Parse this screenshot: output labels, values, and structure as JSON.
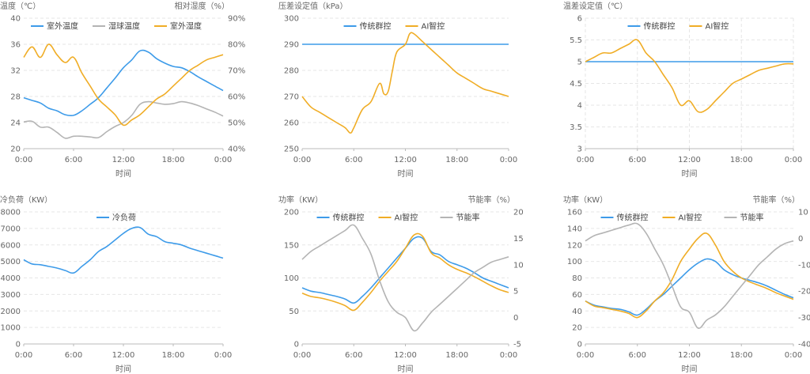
{
  "colors": {
    "blue": "#3d9be9",
    "gray": "#b4b4b4",
    "orange": "#f0ad26",
    "grid": "#e6e6e6",
    "axis": "#bbbbbb"
  },
  "chart_data": [
    {
      "type": "line",
      "ylabel_left": "温度（℃）",
      "ylabel_right": "相对湿度（%）",
      "xlabel": "时间",
      "x_ticks": [
        "0:00",
        "6:00",
        "12:00",
        "18:00",
        "0:00"
      ],
      "ylim_left": [
        20,
        40
      ],
      "yticks_left": [
        20,
        24,
        28,
        32,
        36,
        40
      ],
      "ylim_right": [
        40,
        90
      ],
      "yticks_right": [
        "40%",
        "50%",
        "60%",
        "70%",
        "80%",
        "90%"
      ],
      "right_ylim_values": [
        40,
        90
      ],
      "right_yticks_values": [
        40,
        50,
        60,
        70,
        80,
        90
      ],
      "x_range": [
        0,
        24
      ],
      "grid": "horizontal-dashed",
      "legend": "top",
      "series": [
        {
          "name": "室外温度",
          "axis": "left",
          "color": "#3d9be9",
          "x": [
            0,
            1,
            2,
            3,
            4,
            5,
            6,
            7,
            8,
            9,
            10,
            11,
            12,
            13,
            14,
            15,
            16,
            17,
            18,
            19,
            20,
            21,
            22,
            23,
            24
          ],
          "values": [
            27.8,
            27.4,
            27.0,
            26.2,
            25.8,
            25.2,
            25.1,
            25.8,
            26.8,
            27.8,
            29.3,
            30.8,
            32.4,
            33.6,
            35.0,
            34.8,
            33.8,
            33.1,
            32.6,
            32.4,
            31.8,
            31.0,
            30.3,
            29.6,
            28.9
          ]
        },
        {
          "name": "湿球温度",
          "axis": "left",
          "color": "#b4b4b4",
          "x": [
            0,
            1,
            2,
            3,
            4,
            5,
            6,
            7,
            8,
            9,
            10,
            11,
            12,
            13,
            14,
            15,
            16,
            17,
            18,
            19,
            20,
            21,
            22,
            23,
            24
          ],
          "values": [
            24.1,
            24.2,
            23.3,
            23.3,
            22.5,
            21.6,
            21.9,
            21.9,
            21.8,
            21.7,
            22.6,
            23.4,
            24.0,
            25.1,
            26.8,
            27.2,
            27.0,
            26.8,
            26.9,
            27.2,
            27.0,
            26.6,
            26.1,
            25.6,
            25.0
          ]
        },
        {
          "name": "室外湿度",
          "axis": "right",
          "color": "#f0ad26",
          "x": [
            0,
            1,
            2,
            3,
            4,
            5,
            6,
            7,
            8,
            9,
            10,
            11,
            12,
            13,
            14,
            15,
            16,
            17,
            18,
            19,
            20,
            21,
            22,
            23,
            24
          ],
          "values": [
            75,
            79,
            75,
            80,
            76,
            73,
            75,
            69,
            64,
            59,
            56,
            53,
            49,
            51,
            53,
            56,
            59,
            61,
            64,
            67,
            70,
            72,
            74,
            75,
            76
          ]
        }
      ]
    },
    {
      "type": "line",
      "ylabel_left": "压差设定值（kPa）",
      "xlabel": "时间",
      "x_ticks": [
        "0:00",
        "6:00",
        "12:00",
        "18:00",
        "0:00"
      ],
      "ylim_left": [
        250,
        300
      ],
      "yticks_left": [
        250,
        260,
        270,
        280,
        290,
        300
      ],
      "x_range": [
        0,
        24
      ],
      "grid": "horizontal-dashed",
      "legend": "top",
      "series": [
        {
          "name": "传统群控",
          "axis": "left",
          "color": "#3d9be9",
          "x": [
            0,
            24
          ],
          "values": [
            290,
            290
          ]
        },
        {
          "name": "AI智控",
          "axis": "left",
          "color": "#f0ad26",
          "x": [
            0,
            1,
            2,
            3,
            4,
            5,
            5.6,
            6,
            7,
            8,
            9,
            9.5,
            10,
            10.5,
            11,
            12,
            12.5,
            13,
            14,
            15,
            16,
            17,
            18,
            19,
            20,
            21,
            22,
            23,
            24
          ],
          "values": [
            270,
            266,
            264,
            262,
            260,
            258,
            256,
            258,
            265,
            268,
            275,
            271,
            272,
            280,
            287,
            290,
            294,
            294,
            291,
            288,
            285,
            282,
            279,
            277,
            275,
            273,
            272,
            271,
            270
          ]
        }
      ]
    },
    {
      "type": "line",
      "ylabel_left": "温差设定值（℃）",
      "xlabel": "时间",
      "x_ticks": [
        "0:00",
        "6:00",
        "12:00",
        "18:00",
        "0:00"
      ],
      "ylim_left": [
        3,
        6
      ],
      "yticks_left": [
        "3",
        "3.5",
        "4",
        "4.5",
        "5",
        "5.5",
        "6"
      ],
      "ylim_values": [
        3,
        6
      ],
      "ytick_values": [
        3,
        3.5,
        4,
        4.5,
        5,
        5.5,
        6
      ],
      "x_range": [
        0,
        24
      ],
      "grid": "dashed-both",
      "legend": "top",
      "series": [
        {
          "name": "传统群控",
          "axis": "left",
          "color": "#3d9be9",
          "x": [
            0,
            24
          ],
          "values": [
            5,
            5
          ]
        },
        {
          "name": "AI智控",
          "axis": "left",
          "color": "#f0ad26",
          "x": [
            0,
            1,
            2,
            3,
            4,
            5,
            6,
            7,
            8,
            9,
            10,
            11,
            12,
            13,
            14,
            15,
            16,
            17,
            18,
            19,
            20,
            21,
            22,
            23,
            24
          ],
          "values": [
            5.0,
            5.1,
            5.2,
            5.2,
            5.3,
            5.4,
            5.5,
            5.2,
            5.0,
            4.7,
            4.4,
            4.0,
            4.1,
            3.85,
            3.9,
            4.1,
            4.3,
            4.5,
            4.6,
            4.7,
            4.8,
            4.85,
            4.9,
            4.95,
            4.95
          ]
        }
      ]
    },
    {
      "type": "line",
      "ylabel_left": "冷负荷（KW）",
      "xlabel": "时间",
      "x_ticks": [
        "0:00",
        "6:00",
        "12:00",
        "18:00",
        "0:00"
      ],
      "ylim_left": [
        0,
        8000
      ],
      "yticks_left": [
        0,
        1000,
        2000,
        3000,
        4000,
        5000,
        6000,
        7000,
        8000
      ],
      "x_range": [
        0,
        24
      ],
      "grid": "horizontal-dashed",
      "legend": "top",
      "series": [
        {
          "name": "冷负荷",
          "axis": "left",
          "color": "#3d9be9",
          "x": [
            0,
            1,
            2,
            3,
            4,
            5,
            6,
            7,
            8,
            9,
            10,
            11,
            12,
            13,
            14,
            15,
            16,
            17,
            18,
            19,
            20,
            21,
            22,
            23,
            24
          ],
          "values": [
            5100,
            4850,
            4800,
            4700,
            4600,
            4450,
            4300,
            4700,
            5100,
            5600,
            5900,
            6300,
            6700,
            7000,
            7050,
            6650,
            6500,
            6200,
            6100,
            6000,
            5800,
            5650,
            5500,
            5350,
            5200
          ]
        }
      ]
    },
    {
      "type": "line",
      "ylabel_left": "功率（KW）",
      "ylabel_right": "节能率（%）",
      "xlabel": "时间",
      "x_ticks": [
        "0:00",
        "6:00",
        "12:00",
        "18:00",
        "0:00"
      ],
      "ylim_left": [
        0,
        200
      ],
      "yticks_left": [
        0,
        50,
        100,
        150,
        200
      ],
      "ylim_right": [
        -5,
        20
      ],
      "yticks_right": [
        -5,
        0,
        5,
        10,
        15,
        20
      ],
      "x_range": [
        0,
        24
      ],
      "grid": "horizontal-dashed",
      "legend": "top",
      "series": [
        {
          "name": "传统群控",
          "axis": "left",
          "color": "#3d9be9",
          "x": [
            0,
            1,
            2,
            3,
            4,
            5,
            6,
            7,
            8,
            9,
            10,
            11,
            12,
            13,
            14,
            15,
            16,
            17,
            18,
            19,
            20,
            21,
            22,
            23,
            24
          ],
          "values": [
            85,
            80,
            78,
            75,
            72,
            68,
            62,
            72,
            85,
            100,
            115,
            130,
            145,
            160,
            160,
            140,
            135,
            125,
            120,
            115,
            108,
            100,
            95,
            90,
            85
          ]
        },
        {
          "name": "AI智控",
          "axis": "left",
          "color": "#f0ad26",
          "x": [
            0,
            1,
            2,
            3,
            4,
            5,
            6,
            7,
            8,
            9,
            10,
            11,
            12,
            13,
            14,
            15,
            16,
            17,
            18,
            19,
            20,
            21,
            22,
            23,
            24
          ],
          "values": [
            77,
            72,
            70,
            67,
            63,
            58,
            51,
            63,
            78,
            95,
            110,
            125,
            145,
            165,
            163,
            138,
            130,
            120,
            113,
            108,
            102,
            95,
            88,
            82,
            78
          ]
        },
        {
          "name": "节能率",
          "axis": "right",
          "color": "#b4b4b4",
          "x": [
            0,
            1,
            2,
            3,
            4,
            5,
            6,
            7,
            8,
            9,
            10,
            11,
            12,
            13,
            14,
            15,
            16,
            17,
            18,
            19,
            20,
            21,
            22,
            23,
            24
          ],
          "values": [
            11,
            12.5,
            13.5,
            14.5,
            15.5,
            16.5,
            17.5,
            15,
            12,
            7,
            3,
            1,
            0,
            -2.5,
            -1,
            1,
            2.5,
            4,
            5.5,
            7,
            8.5,
            9.5,
            10.5,
            11,
            11.5
          ]
        }
      ]
    },
    {
      "type": "line",
      "ylabel_left": "功率（KW）",
      "ylabel_right": "节能率（%）",
      "xlabel": "时间",
      "x_ticks": [
        "0:00",
        "6:00",
        "12:00",
        "18:00",
        "0:00"
      ],
      "ylim_left": [
        0,
        160
      ],
      "yticks_left": [
        0,
        20,
        40,
        60,
        80,
        100,
        120,
        140,
        160
      ],
      "ylim_right": [
        -40,
        10
      ],
      "yticks_right": [
        -40,
        -30,
        -20,
        -10,
        0,
        10
      ],
      "x_range": [
        0,
        24
      ],
      "grid": "horizontal-dashed",
      "legend": "top",
      "series": [
        {
          "name": "传统群控",
          "axis": "left",
          "color": "#3d9be9",
          "x": [
            0,
            1,
            2,
            3,
            4,
            5,
            6,
            7,
            8,
            9,
            10,
            11,
            12,
            13,
            14,
            15,
            16,
            17,
            18,
            19,
            20,
            21,
            22,
            23,
            24
          ],
          "values": [
            52,
            47,
            45,
            43,
            42,
            39,
            35,
            42,
            52,
            60,
            70,
            80,
            90,
            98,
            103,
            100,
            90,
            84,
            80,
            77,
            74,
            70,
            65,
            60,
            56
          ]
        },
        {
          "name": "AI智控",
          "axis": "left",
          "color": "#f0ad26",
          "x": [
            0,
            1,
            2,
            3,
            4,
            5,
            6,
            7,
            8,
            9,
            10,
            11,
            12,
            13,
            14,
            15,
            16,
            17,
            18,
            19,
            20,
            21,
            22,
            23,
            24
          ],
          "values": [
            52,
            46,
            44,
            42,
            40,
            37,
            32,
            40,
            52,
            62,
            78,
            100,
            115,
            128,
            134,
            120,
            100,
            88,
            80,
            75,
            71,
            67,
            62,
            58,
            54
          ]
        },
        {
          "name": "节能率",
          "axis": "right",
          "color": "#b4b4b4",
          "x": [
            0,
            1,
            2,
            3,
            4,
            5,
            6,
            7,
            8,
            9,
            10,
            11,
            12,
            13,
            14,
            15,
            16,
            17,
            18,
            19,
            20,
            21,
            22,
            23,
            24
          ],
          "values": [
            -1,
            1,
            2,
            3,
            4,
            5,
            5.5,
            2,
            -4,
            -10,
            -18,
            -26,
            -28,
            -34,
            -31,
            -29,
            -26,
            -22,
            -18,
            -14,
            -10,
            -7,
            -4,
            -2,
            -1
          ]
        }
      ]
    }
  ]
}
